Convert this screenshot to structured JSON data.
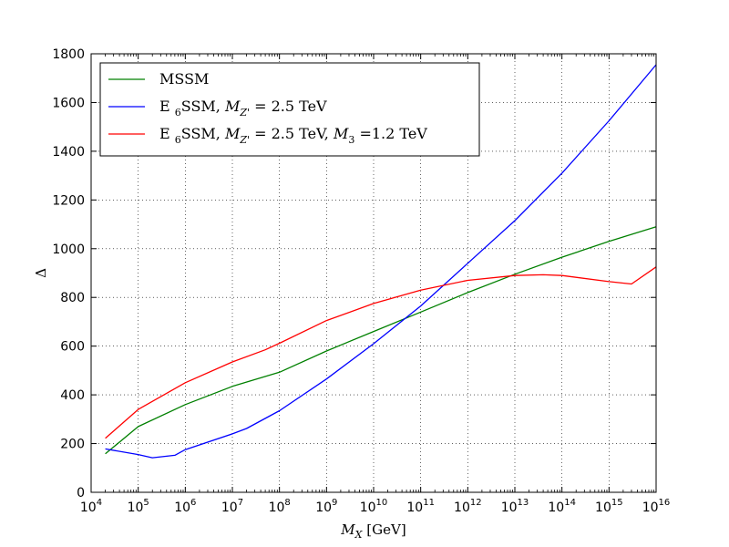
{
  "chart_data": {
    "type": "line",
    "xlabel": {
      "var": "M",
      "sub": "X",
      "unit": "[GeV]"
    },
    "ylabel": "Δ",
    "xscale": "log",
    "xlim": [
      10000,
      10000000000000000
    ],
    "ylim": [
      0,
      1800
    ],
    "xticks": [
      {
        "base": "10",
        "exp": "4"
      },
      {
        "base": "10",
        "exp": "5"
      },
      {
        "base": "10",
        "exp": "6"
      },
      {
        "base": "10",
        "exp": "7"
      },
      {
        "base": "10",
        "exp": "8"
      },
      {
        "base": "10",
        "exp": "9"
      },
      {
        "base": "10",
        "exp": "10"
      },
      {
        "base": "10",
        "exp": "11"
      },
      {
        "base": "10",
        "exp": "12"
      },
      {
        "base": "10",
        "exp": "13"
      },
      {
        "base": "10",
        "exp": "14"
      },
      {
        "base": "10",
        "exp": "15"
      },
      {
        "base": "10",
        "exp": "16"
      }
    ],
    "yticks": [
      "0",
      "200",
      "400",
      "600",
      "800",
      "1000",
      "1200",
      "1400",
      "1600",
      "1800"
    ],
    "grid": true,
    "legend_position": "top-left",
    "series": [
      {
        "name": "MSSM",
        "legend": [
          {
            "t": "MSSM"
          }
        ],
        "color": "#008000",
        "x": [
          20000,
          100000,
          1000000,
          10000000,
          100000000,
          1000000000,
          10000000000,
          100000000000,
          1000000000000,
          10000000000000,
          100000000000000,
          1000000000000000,
          10000000000000000
        ],
        "y": [
          158,
          270,
          360,
          435,
          493,
          580,
          660,
          740,
          820,
          895,
          965,
          1030,
          1090
        ]
      },
      {
        "name": "E6SSM, MZ' = 2.5 TeV",
        "legend": [
          {
            "t": "E "
          },
          {
            "t": "6",
            "cls": "sub",
            "dy": 5
          },
          {
            "t": "SSM, ",
            "dy": -5
          },
          {
            "t": "M",
            "italic": true
          },
          {
            "t": "Z'",
            "cls": "sub",
            "dy": 5,
            "italic": true
          },
          {
            "t": " = 2.5 TeV",
            "dy": -5
          }
        ],
        "color": "#0000ff",
        "x": [
          20000,
          100000,
          200000,
          600000,
          1000000,
          10000000,
          20000000,
          100000000,
          1000000000,
          10000000000,
          100000000000,
          1000000000000,
          10000000000000,
          100000000000000,
          1000000000000000,
          10000000000000000
        ],
        "y": [
          178,
          155,
          142,
          152,
          175,
          240,
          262,
          335,
          465,
          610,
          765,
          940,
          1115,
          1310,
          1525,
          1755
        ]
      },
      {
        "name": "E6SSM, MZ' = 2.5 TeV, M3 =1.2 TeV",
        "legend": [
          {
            "t": "E "
          },
          {
            "t": "6",
            "cls": "sub",
            "dy": 5
          },
          {
            "t": "SSM, ",
            "dy": -5
          },
          {
            "t": "M",
            "italic": true
          },
          {
            "t": "Z'",
            "cls": "sub",
            "dy": 5,
            "italic": true
          },
          {
            "t": " = 2.5 TeV, ",
            "dy": -5
          },
          {
            "t": "M",
            "italic": true
          },
          {
            "t": "3",
            "cls": "sub",
            "dy": 5
          },
          {
            "t": " =1.2 TeV",
            "dy": -5
          }
        ],
        "color": "#ff0000",
        "x": [
          20000,
          100000,
          1000000,
          10000000,
          50000000,
          100000000,
          1000000000,
          10000000000,
          100000000000,
          1000000000000,
          10000000000000,
          40000000000000,
          100000000000000,
          1000000000000000,
          3000000000000000,
          10000000000000000
        ],
        "y": [
          222,
          340,
          450,
          535,
          585,
          612,
          705,
          775,
          830,
          870,
          890,
          893,
          890,
          865,
          855,
          925
        ]
      }
    ]
  }
}
